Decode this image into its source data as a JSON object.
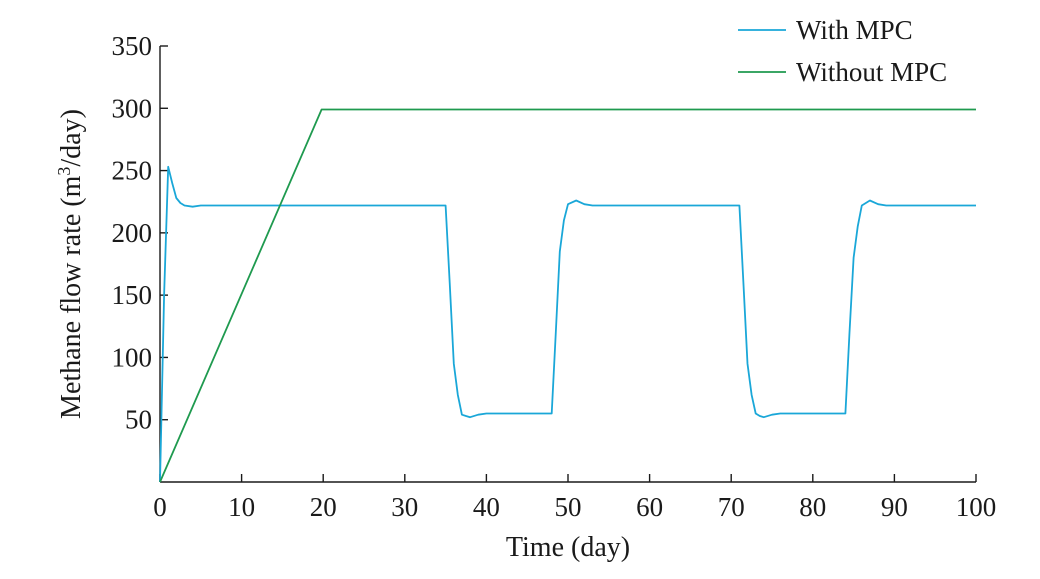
{
  "chart_data": {
    "type": "line",
    "xlabel": "Time (day)",
    "ylabel": {
      "prefix": "Methane flow rate (m",
      "sup": "3",
      "suffix": "/day)"
    },
    "xlim": [
      0,
      100
    ],
    "ylim": [
      0,
      350
    ],
    "xticks": [
      0,
      10,
      20,
      30,
      40,
      50,
      60,
      70,
      80,
      90,
      100
    ],
    "yticks": [
      50,
      100,
      150,
      200,
      250,
      300,
      350
    ],
    "grid": false,
    "legend_position": "top-right",
    "series": [
      {
        "name": "With MPC",
        "color": "#1aa7d8",
        "x": [
          0,
          0.5,
          1,
          1.5,
          2,
          2.5,
          3,
          4,
          5,
          6,
          10,
          20,
          30,
          35,
          35.5,
          36,
          36.5,
          37,
          37.5,
          38,
          39,
          40,
          42,
          45,
          48,
          48.5,
          49,
          49.5,
          50,
          51,
          52,
          53,
          55,
          60,
          65,
          70,
          71,
          71.5,
          72,
          72.5,
          73,
          73.5,
          74,
          75,
          76,
          78,
          80,
          84,
          84.5,
          85,
          85.5,
          86,
          87,
          88,
          89,
          90,
          95,
          100
        ],
        "y": [
          0,
          150,
          253,
          240,
          228,
          224,
          222,
          221,
          222,
          222,
          222,
          222,
          222,
          222,
          160,
          95,
          70,
          54,
          53,
          52,
          54,
          55,
          55,
          55,
          55,
          120,
          185,
          210,
          223,
          226,
          223,
          222,
          222,
          222,
          222,
          222,
          222,
          160,
          95,
          70,
          55,
          53,
          52,
          54,
          55,
          55,
          55,
          55,
          120,
          180,
          205,
          222,
          226,
          223,
          222,
          222,
          222,
          222
        ]
      },
      {
        "name": "Without MPC",
        "color": "#1f9a4f",
        "x": [
          0,
          19.8,
          100
        ],
        "y": [
          0,
          299,
          299
        ]
      }
    ]
  }
}
